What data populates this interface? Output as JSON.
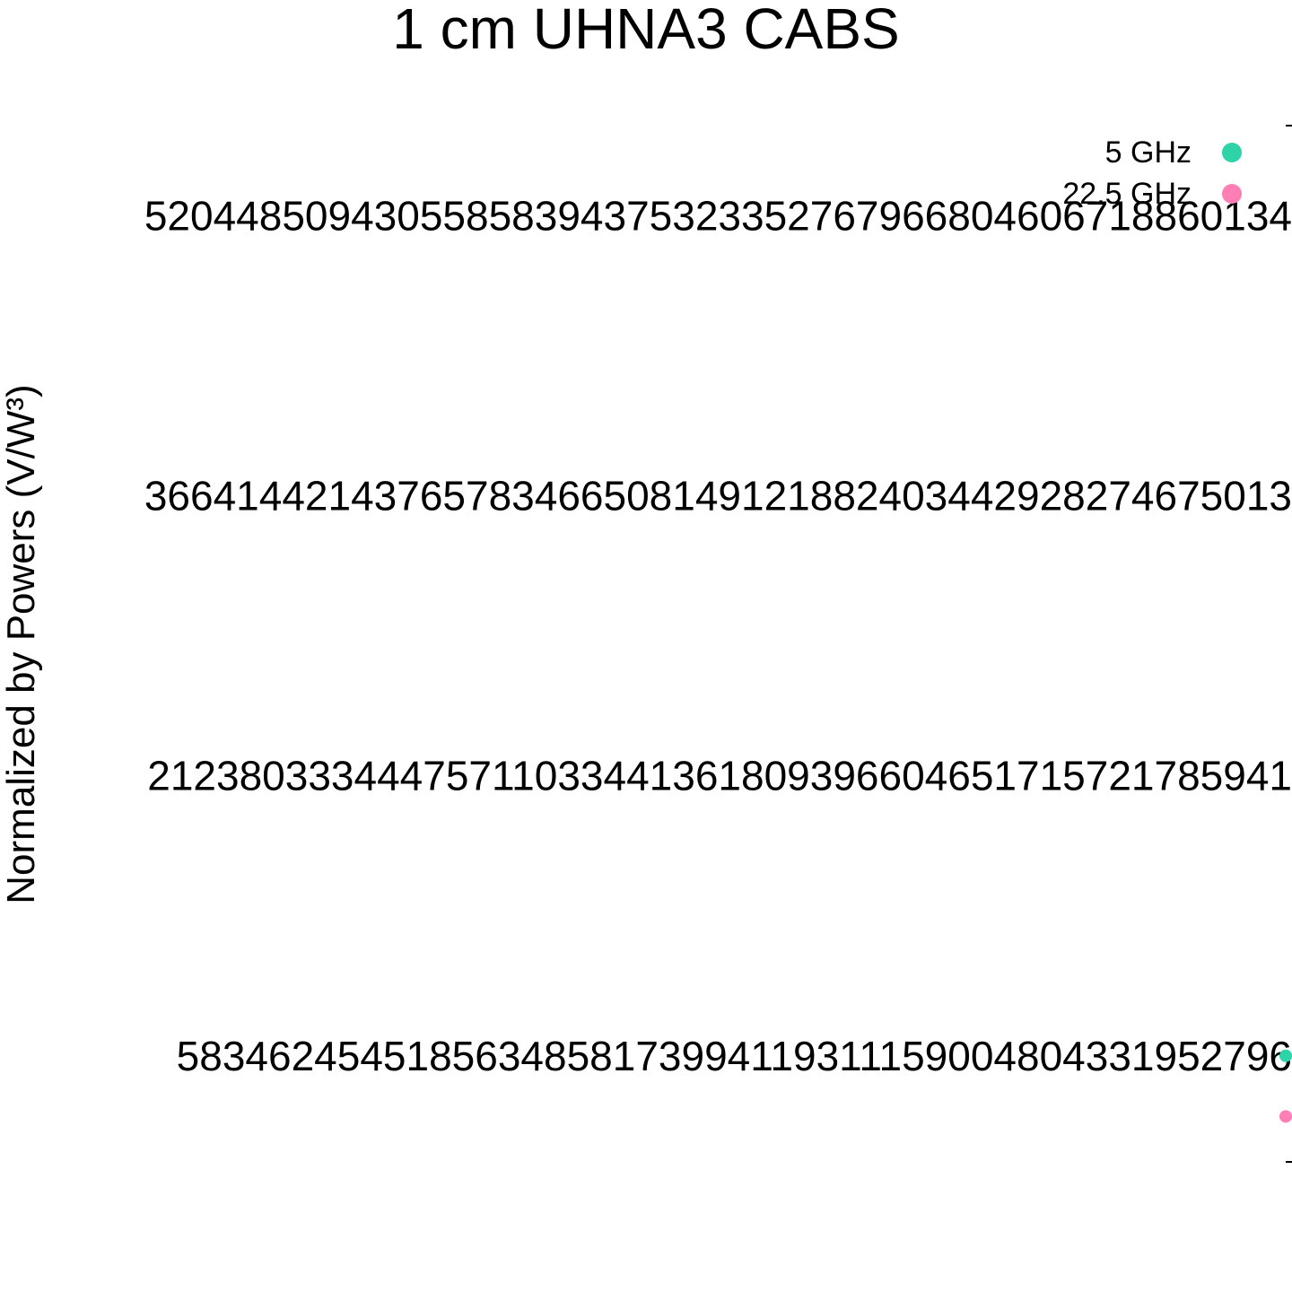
{
  "chart_data": {
    "type": "scatter",
    "title": "1 cm UHNA3 CABS",
    "xlabel": "",
    "ylabel": "Normalized by Powers (V/W³)",
    "yticks": [
      {
        "value": 52044850943055858394375323352767966804606718860134,
        "label": "52044850943055858394375323352767966804606718860134"
      },
      {
        "value": 36641442143765783466508149121882403442928274675013,
        "label": "36641442143765783466508149121882403442928274675013"
      },
      {
        "value": 21238033344475711033441361809396604651715721785941,
        "label": "21238033344475711033441361809396604651715721785941"
      },
      {
        "value": 5834624545185634858173994119311159004804331952796,
        "label": "5834624545185634858173994119311159004804331952796"
      }
    ],
    "ylim": [
      -1,
      57000000000000000000000000000000000000000000000000
    ],
    "grid": false,
    "legend": {
      "placement": "top-right",
      "entries": [
        {
          "name": "5 GHz",
          "color": "#2ed3a8"
        },
        {
          "name": "22.5 GHz",
          "color": "#ff7eb3"
        }
      ]
    },
    "series": [
      {
        "name": "5 GHz",
        "color": "#2ed3a8",
        "points": [
          {
            "y": 5834624545185634858173994119311159004804331952796
          }
        ]
      },
      {
        "name": "22.5 GHz",
        "color": "#ff7eb3",
        "points": [
          {
            "y": 2500000000000000000000000000000000000000000000000
          }
        ]
      }
    ]
  }
}
